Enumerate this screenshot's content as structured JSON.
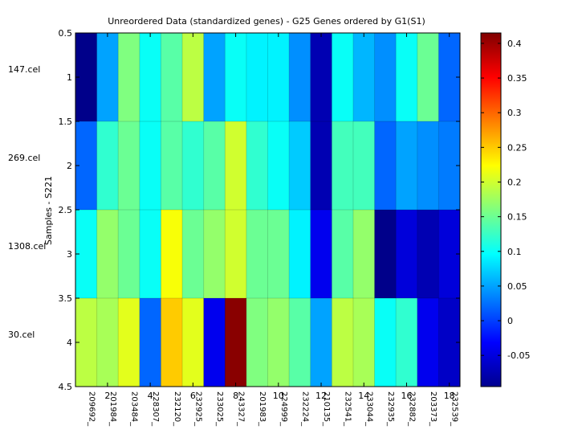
{
  "chart_data": {
    "type": "heatmap",
    "title": "Unreordered Data (standardized genes) - G25 Genes ordered by G1(S1)",
    "ylabel": "Samples - S221",
    "xlabel": "",
    "x_ticks": [
      2,
      4,
      6,
      8,
      10,
      12,
      14,
      16,
      18
    ],
    "y_ticks": [
      "0.5",
      "1",
      "1.5",
      "2",
      "2.5",
      "3",
      "3.5",
      "4",
      "4.5"
    ],
    "xlim": [
      0.5,
      18.5
    ],
    "ylim": [
      0.5,
      4.5
    ],
    "row_labels": [
      "147.cel",
      "269.cel",
      "1308.cel",
      "30.cel"
    ],
    "column_labels": [
      "209692_",
      "201984_",
      "203484_",
      "228307_",
      "232120_",
      "232925_",
      "233025_",
      "243327_",
      "201983_",
      "224999_",
      "232224_",
      "210135_",
      "232541_",
      "233044_",
      "232935_",
      "232882_",
      "203373_",
      "232539_"
    ],
    "values": [
      [
        -0.09,
        0.05,
        0.16,
        0.1,
        0.14,
        0.19,
        0.05,
        0.1,
        0.09,
        0.09,
        0.04,
        -0.07,
        0.1,
        0.06,
        0.04,
        0.1,
        0.15,
        0.02
      ],
      [
        0.02,
        0.12,
        0.15,
        0.1,
        0.14,
        0.12,
        0.14,
        0.2,
        0.12,
        0.1,
        0.07,
        -0.07,
        0.13,
        0.13,
        0.02,
        0.05,
        0.04,
        0.03
      ],
      [
        0.1,
        0.17,
        0.15,
        0.1,
        0.22,
        0.15,
        0.17,
        0.2,
        0.15,
        0.15,
        0.09,
        -0.04,
        0.14,
        0.17,
        -0.09,
        -0.05,
        -0.07,
        -0.05
      ],
      [
        0.19,
        0.18,
        0.21,
        0.02,
        0.25,
        0.21,
        -0.04,
        0.41,
        0.16,
        0.17,
        0.14,
        0.05,
        0.19,
        0.18,
        0.1,
        0.12,
        -0.04,
        -0.06
      ]
    ],
    "colorbar": {
      "colormap": "jet",
      "range": [
        -0.095,
        0.415
      ],
      "ticks": [
        -0.05,
        0,
        0.05,
        0.1,
        0.15,
        0.2,
        0.25,
        0.3,
        0.35,
        0.4
      ],
      "tick_labels": [
        "-0.05",
        "0",
        "0.05",
        "0.1",
        "0.15",
        "0.2",
        "0.25",
        "0.3",
        "0.35",
        "0.4"
      ]
    }
  }
}
